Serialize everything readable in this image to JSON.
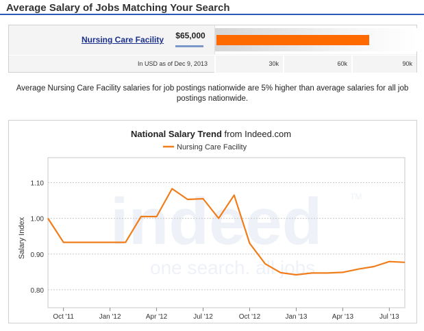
{
  "header": {
    "title": "Average Salary of Jobs Matching Your Search"
  },
  "salary": {
    "job_title": "Nursing Care Facility",
    "amount": "$65,000",
    "amount_value": 65000,
    "scale_max": 90000,
    "as_of": "In USD as of Dec 9, 2013",
    "ticks": [
      "30k",
      "60k",
      "90k"
    ],
    "bar_color": "#ff6a00"
  },
  "summary": "Average Nursing Care Facility salaries for job postings nationwide are 5% higher than average salaries for all job postings nationwide.",
  "watermark": {
    "logo": "indeed",
    "tagline": "one search. all jobs",
    "tm": "TM"
  },
  "chart_data": {
    "type": "line",
    "title": "National Salary Trend",
    "title_suffix": "from Indeed.com",
    "ylabel": "Salary Index",
    "ylim": [
      0.75,
      1.17
    ],
    "yticks": [
      0.8,
      0.9,
      1.0,
      1.1
    ],
    "ytick_labels": [
      "0.80",
      "0.90",
      "1.00",
      "1.10"
    ],
    "xtick_labels": [
      "Oct '11",
      "Jan '12",
      "Apr '12",
      "Jul '12",
      "Oct '12",
      "Jan '13",
      "Apr '13",
      "Jul '13"
    ],
    "xtick_dates": [
      "2011-10",
      "2012-01",
      "2012-04",
      "2012-07",
      "2012-10",
      "2013-01",
      "2013-04",
      "2013-07"
    ],
    "grid": true,
    "legend": "top-center",
    "series": [
      {
        "name": "Nursing Care Facility",
        "color": "#f07d1a",
        "x": [
          "2011-09",
          "2011-10",
          "2011-11",
          "2011-12",
          "2012-01",
          "2012-02",
          "2012-03",
          "2012-04",
          "2012-05",
          "2012-06",
          "2012-07",
          "2012-08",
          "2012-09",
          "2012-10",
          "2012-11",
          "2012-12",
          "2013-01",
          "2013-02",
          "2013-03",
          "2013-04",
          "2013-05",
          "2013-06",
          "2013-07",
          "2013-08"
        ],
        "values": [
          1.0,
          0.933,
          0.933,
          0.933,
          0.933,
          0.933,
          1.005,
          1.005,
          1.083,
          1.053,
          1.055,
          1.0,
          1.065,
          0.93,
          0.873,
          0.848,
          0.842,
          0.847,
          0.847,
          0.849,
          0.858,
          0.865,
          0.879,
          0.877
        ]
      }
    ]
  }
}
